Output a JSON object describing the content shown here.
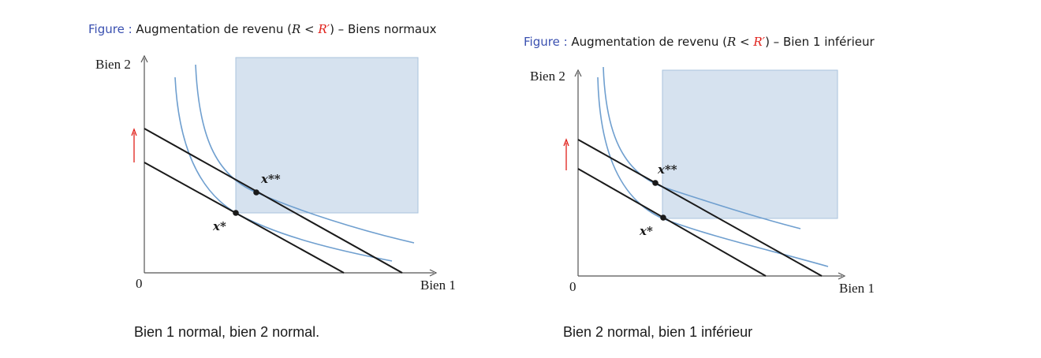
{
  "colors": {
    "region_fill": "#d6e2ef",
    "region_edge": "#a9c3dd",
    "curve": "#6f9fcf",
    "budget": "#1a1a1a",
    "arrow": "#e0201a",
    "fig_label": "#3a50b0"
  },
  "figures": [
    {
      "title": {
        "prefix": "Figure :",
        "text": "Augmentation de revenu (",
        "r": "R",
        "lt": " < ",
        "rp": "R′",
        "suffix": ") – Biens normaux"
      },
      "y_axis_label": "Bien 2",
      "x_axis_label": "Bien 1",
      "origin_label": "0",
      "point_initial_label": "x*",
      "point_new_label": "x**",
      "caption": "Bien 1 normal, bien 2 normal."
    },
    {
      "title": {
        "prefix": "Figure :",
        "text": "Augmentation de revenu (",
        "r": "R",
        "lt": " < ",
        "rp": "R′",
        "suffix": ") – Bien 1 inférieur"
      },
      "y_axis_label": "Bien 2",
      "x_axis_label": "Bien 1",
      "origin_label": "0",
      "point_initial_label": "x*",
      "point_new_label": "x**",
      "caption": "Bien 2 normal, bien 1 inférieur"
    }
  ]
}
